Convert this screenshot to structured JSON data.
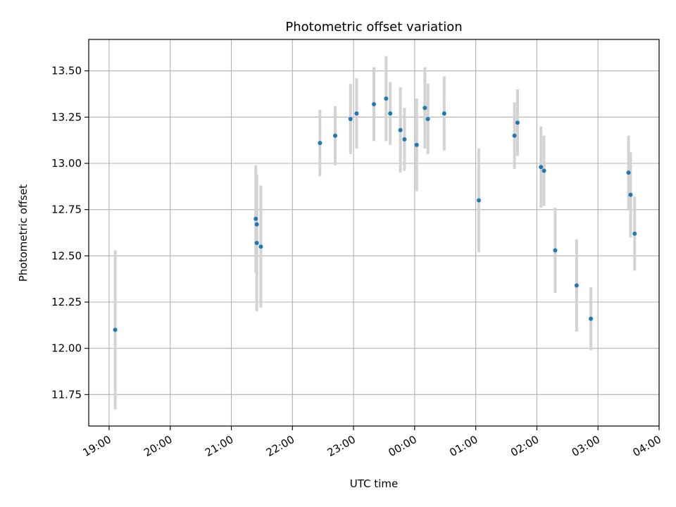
{
  "chart_data": {
    "type": "scatter",
    "title": "Photometric offset variation",
    "xlabel": "UTC time",
    "ylabel": "Photometric offset",
    "x_ticks": [
      "19:00",
      "20:00",
      "21:00",
      "22:00",
      "23:00",
      "00:00",
      "01:00",
      "02:00",
      "03:00",
      "04:00"
    ],
    "y_ticks": [
      "11.75",
      "12.00",
      "12.25",
      "12.50",
      "12.75",
      "13.00",
      "13.25",
      "13.50"
    ],
    "xlim": [
      "18:40",
      "04:00"
    ],
    "ylim": [
      11.58,
      13.67
    ],
    "grid": true,
    "colors": {
      "point": "#1f77b4",
      "errorbar": "#d3d3d3",
      "grid": "#b0b0b0"
    },
    "series": [
      {
        "points": [
          {
            "x": "19:06",
            "y": 12.1,
            "err": 0.43
          },
          {
            "x": "21:24",
            "y": 12.7,
            "err": 0.29
          },
          {
            "x": "21:25",
            "y": 12.67,
            "err": 0.27
          },
          {
            "x": "21:25",
            "y": 12.57,
            "err": 0.37
          },
          {
            "x": "21:29",
            "y": 12.55,
            "err": 0.33
          },
          {
            "x": "22:27",
            "y": 13.11,
            "err": 0.18
          },
          {
            "x": "22:42",
            "y": 13.15,
            "err": 0.16
          },
          {
            "x": "22:57",
            "y": 13.24,
            "err": 0.19
          },
          {
            "x": "23:03",
            "y": 13.27,
            "err": 0.19
          },
          {
            "x": "23:20",
            "y": 13.32,
            "err": 0.2
          },
          {
            "x": "23:32",
            "y": 13.35,
            "err": 0.23
          },
          {
            "x": "23:36",
            "y": 13.27,
            "err": 0.17
          },
          {
            "x": "23:46",
            "y": 13.18,
            "err": 0.23
          },
          {
            "x": "23:50",
            "y": 13.13,
            "err": 0.17
          },
          {
            "x": "00:02",
            "y": 13.1,
            "err": 0.25
          },
          {
            "x": "00:10",
            "y": 13.3,
            "err": 0.22
          },
          {
            "x": "00:13",
            "y": 13.24,
            "err": 0.19
          },
          {
            "x": "00:29",
            "y": 13.27,
            "err": 0.2
          },
          {
            "x": "01:03",
            "y": 12.8,
            "err": 0.28
          },
          {
            "x": "01:38",
            "y": 13.15,
            "err": 0.18
          },
          {
            "x": "01:41",
            "y": 13.22,
            "err": 0.18
          },
          {
            "x": "02:04",
            "y": 12.98,
            "err": 0.22
          },
          {
            "x": "02:07",
            "y": 12.96,
            "err": 0.19
          },
          {
            "x": "02:18",
            "y": 12.53,
            "err": 0.23
          },
          {
            "x": "02:39",
            "y": 12.34,
            "err": 0.25
          },
          {
            "x": "02:53",
            "y": 12.16,
            "err": 0.17
          },
          {
            "x": "03:30",
            "y": 12.95,
            "err": 0.2
          },
          {
            "x": "03:32",
            "y": 12.83,
            "err": 0.23
          },
          {
            "x": "03:36",
            "y": 12.62,
            "err": 0.2
          }
        ]
      }
    ]
  }
}
